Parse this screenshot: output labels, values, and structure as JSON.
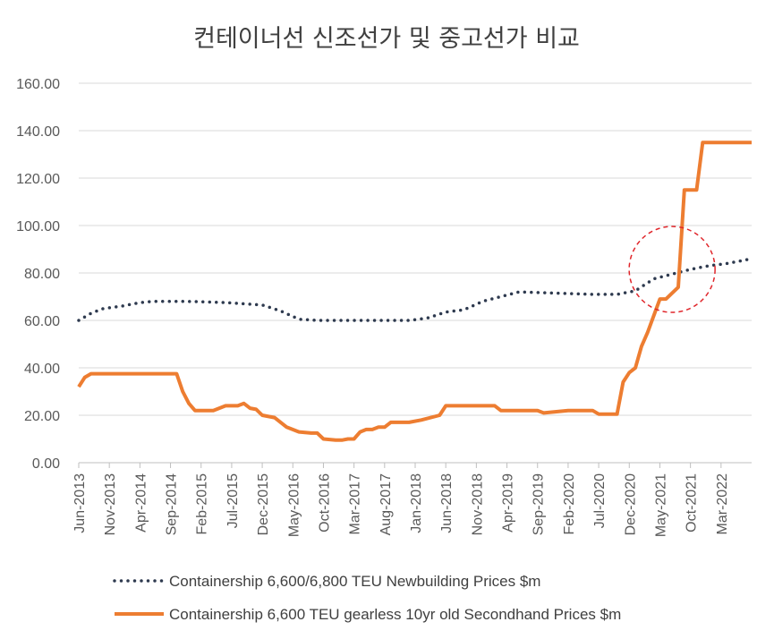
{
  "chart_data": {
    "type": "line",
    "title": "컨테이너선 신조선가 및 중고선가 비교",
    "xlabel": "",
    "ylabel": "",
    "ylim": [
      0,
      160
    ],
    "yticks": [
      "0.00",
      "20.00",
      "40.00",
      "60.00",
      "80.00",
      "100.00",
      "120.00",
      "140.00",
      "160.00"
    ],
    "x_tick_labels": [
      "Jun-2013",
      "Nov-2013",
      "Apr-2014",
      "Sep-2014",
      "Feb-2015",
      "Jul-2015",
      "Dec-2015",
      "May-2016",
      "Oct-2016",
      "Mar-2017",
      "Aug-2017",
      "Jan-2018",
      "Jun-2018",
      "Nov-2018",
      "Apr-2019",
      "Sep-2019",
      "Feb-2020",
      "Jul-2020",
      "Dec-2020",
      "May-2021",
      "Oct-2021",
      "Mar-2022"
    ],
    "x_range": [
      "2013-06",
      "2022-08"
    ],
    "grid": "horizontal",
    "legend_position": "bottom",
    "annotation": "red dashed circle around 2021 divergence",
    "series": [
      {
        "name": "Containership 6,600/6,800 TEU Newbuilding Prices $m",
        "color": "#2e3a4f",
        "style": "dotted",
        "x": [
          "2013-06",
          "2013-08",
          "2013-10",
          "2014-01",
          "2014-04",
          "2014-06",
          "2014-12",
          "2015-06",
          "2015-12",
          "2016-03",
          "2016-06",
          "2016-09",
          "2016-12",
          "2017-06",
          "2017-12",
          "2018-03",
          "2018-06",
          "2018-09",
          "2018-12",
          "2019-03",
          "2019-06",
          "2019-12",
          "2020-06",
          "2020-10",
          "2021-01",
          "2021-04",
          "2021-07",
          "2021-10",
          "2022-01",
          "2022-04",
          "2022-08"
        ],
        "values": [
          60,
          63,
          65,
          66,
          67.5,
          68,
          68,
          67.5,
          66.5,
          64,
          60.5,
          60,
          60,
          60,
          60,
          61,
          63.5,
          64.5,
          68,
          70,
          72,
          71.5,
          71,
          71,
          72.5,
          77.5,
          79.5,
          81.5,
          83,
          84,
          86
        ]
      },
      {
        "name": "Containership 6,600 TEU gearless 10yr old Secondhand Prices $m",
        "color": "#ed7d31",
        "style": "solid",
        "x": [
          "2013-06",
          "2013-07",
          "2013-08",
          "2013-09",
          "2014-10",
          "2014-11",
          "2014-12",
          "2015-01",
          "2015-02",
          "2015-04",
          "2015-06",
          "2015-07",
          "2015-08",
          "2015-09",
          "2015-10",
          "2015-11",
          "2015-12",
          "2016-02",
          "2016-04",
          "2016-06",
          "2016-08",
          "2016-09",
          "2016-10",
          "2016-12",
          "2017-01",
          "2017-02",
          "2017-03",
          "2017-04",
          "2017-05",
          "2017-06",
          "2017-07",
          "2017-08",
          "2017-09",
          "2017-12",
          "2018-02",
          "2018-05",
          "2018-06",
          "2019-02",
          "2019-03",
          "2019-09",
          "2019-10",
          "2020-02",
          "2020-06",
          "2020-07",
          "2020-10",
          "2020-11",
          "2020-12",
          "2021-01",
          "2021-02",
          "2021-03",
          "2021-05",
          "2021-06",
          "2021-08",
          "2021-09",
          "2021-10",
          "2021-11",
          "2021-12",
          "2022-01",
          "2022-02",
          "2022-08"
        ],
        "values": [
          32,
          36,
          37.5,
          37.5,
          37.5,
          30,
          25,
          22,
          22,
          22,
          24,
          24,
          24,
          25,
          23,
          22.5,
          20,
          19,
          15,
          13,
          12.5,
          12.5,
          10,
          9.5,
          9.5,
          10,
          10,
          13,
          14,
          14,
          15,
          15,
          17,
          17,
          18,
          20,
          24,
          24,
          22,
          22,
          21,
          22,
          22,
          20.5,
          20.5,
          34,
          38,
          40,
          49,
          55,
          69,
          69,
          74,
          115,
          115,
          115,
          135,
          135,
          135,
          135
        ]
      }
    ]
  }
}
